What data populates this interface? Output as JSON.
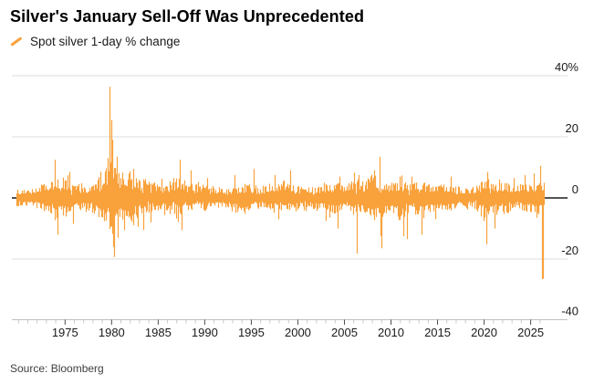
{
  "header": {
    "title": "Silver's January Sell-Off Was Unprecedented"
  },
  "legend": {
    "label": "Spot silver 1-day % change"
  },
  "footer": {
    "source": "Source: Bloomberg"
  },
  "chart_data": {
    "type": "line",
    "title": "Silver's January Sell-Off Was Unprecedented",
    "series_name": "Spot silver 1-day % change",
    "unit": "%",
    "ylabel": "1-day % change",
    "ylim": [
      -40,
      40
    ],
    "x_range": [
      1969.8,
      2026.4
    ],
    "grid": true,
    "legend_position": "top-left",
    "y_ticks": [
      {
        "label": "40%",
        "value": 40
      },
      {
        "label": "20",
        "value": 20
      },
      {
        "label": "0",
        "value": 0
      },
      {
        "label": "-20",
        "value": -20
      },
      {
        "label": "-40",
        "value": -40
      }
    ],
    "x_ticks": [
      1975,
      1980,
      1985,
      1990,
      1995,
      2000,
      2005,
      2010,
      2015,
      2020,
      2025
    ],
    "minor_tick_every_years": 1,
    "colors": {
      "series": "#F9A13B",
      "zero_line": "#1a1a1a",
      "gridline": "#dcdcdc",
      "axis_line": "#bfbfbf",
      "minor_tick": "#c8c8c8",
      "major_tick": "#4d4d4d",
      "label": "#1a1a1a"
    },
    "volatility_envelope": {
      "comment": "approx daily sigma in % per year, used to redraw the dense noise band",
      "start_year": 1970,
      "sigma_pct": [
        0.9,
        0.9,
        1.1,
        1.6,
        2.1,
        1.9,
        1.5,
        1.1,
        1.4,
        2.4,
        3.6,
        2.3,
        2.3,
        1.9,
        1.6,
        1.4,
        1.3,
        1.9,
        1.5,
        1.3,
        1.1,
        1.0,
        1.0,
        1.2,
        1.1,
        1.2,
        1.0,
        1.3,
        1.4,
        1.3,
        1.1,
        1.1,
        1.1,
        1.3,
        1.7,
        1.3,
        1.8,
        1.5,
        2.3,
        1.7,
        1.5,
        2.0,
        1.5,
        1.7,
        1.3,
        1.3,
        1.4,
        1.0,
        0.9,
        1.0,
        1.9,
        1.5,
        1.5,
        1.2,
        1.4,
        1.5,
        1.6
      ]
    },
    "key_events": [
      {
        "x": 1973.9,
        "pct": 12.5
      },
      {
        "x": 1974.15,
        "pct": -12
      },
      {
        "x": 1975.5,
        "pct": 8.5
      },
      {
        "x": 1975.9,
        "pct": -8.5
      },
      {
        "x": 1979.6,
        "pct": 13
      },
      {
        "x": 1979.82,
        "pct": 36.4
      },
      {
        "x": 1980.0,
        "pct": 25.5
      },
      {
        "x": 1980.07,
        "pct": 19
      },
      {
        "x": 1980.12,
        "pct": -16
      },
      {
        "x": 1980.3,
        "pct": -19.3
      },
      {
        "x": 1980.55,
        "pct": 13.5
      },
      {
        "x": 1980.62,
        "pct": -13
      },
      {
        "x": 1981.3,
        "pct": -10.5
      },
      {
        "x": 1982.3,
        "pct": 9.5
      },
      {
        "x": 1982.8,
        "pct": -9.5
      },
      {
        "x": 1983.4,
        "pct": -10.5
      },
      {
        "x": 1984.2,
        "pct": -8
      },
      {
        "x": 1987.3,
        "pct": 12.5
      },
      {
        "x": 1987.5,
        "pct": -10.5
      },
      {
        "x": 1988.5,
        "pct": 9
      },
      {
        "x": 1990.3,
        "pct": 6.5
      },
      {
        "x": 1993.2,
        "pct": 7.5
      },
      {
        "x": 1995.3,
        "pct": 9.5
      },
      {
        "x": 1997.5,
        "pct": 7.5
      },
      {
        "x": 1997.9,
        "pct": -7
      },
      {
        "x": 1999.2,
        "pct": 9
      },
      {
        "x": 2003.0,
        "pct": -7.5
      },
      {
        "x": 2004.3,
        "pct": -10
      },
      {
        "x": 2004.5,
        "pct": 7
      },
      {
        "x": 2006.35,
        "pct": -18.2
      },
      {
        "x": 2006.5,
        "pct": 7.5
      },
      {
        "x": 2008.2,
        "pct": 9
      },
      {
        "x": 2008.75,
        "pct": 13.5
      },
      {
        "x": 2008.85,
        "pct": -12.5
      },
      {
        "x": 2008.95,
        "pct": -16.5
      },
      {
        "x": 2010.9,
        "pct": 7
      },
      {
        "x": 2011.35,
        "pct": -12.5
      },
      {
        "x": 2011.7,
        "pct": -13.5
      },
      {
        "x": 2012.2,
        "pct": 7
      },
      {
        "x": 2013.3,
        "pct": -12
      },
      {
        "x": 2014.8,
        "pct": -7
      },
      {
        "x": 2016.4,
        "pct": 7
      },
      {
        "x": 2020.2,
        "pct": -13
      },
      {
        "x": 2020.24,
        "pct": -15.2
      },
      {
        "x": 2020.3,
        "pct": 8.5
      },
      {
        "x": 2021.1,
        "pct": -10
      },
      {
        "x": 2023.2,
        "pct": 6.5
      },
      {
        "x": 2024.4,
        "pct": 7.5
      },
      {
        "x": 2025.3,
        "pct": 8
      },
      {
        "x": 2025.6,
        "pct": -6.5
      },
      {
        "x": 2026.0,
        "pct": 10.5
      },
      {
        "x": 2026.2,
        "pct": -26.5
      },
      {
        "x": 2026.28,
        "pct": -26.5
      }
    ],
    "seed": 20260131
  }
}
